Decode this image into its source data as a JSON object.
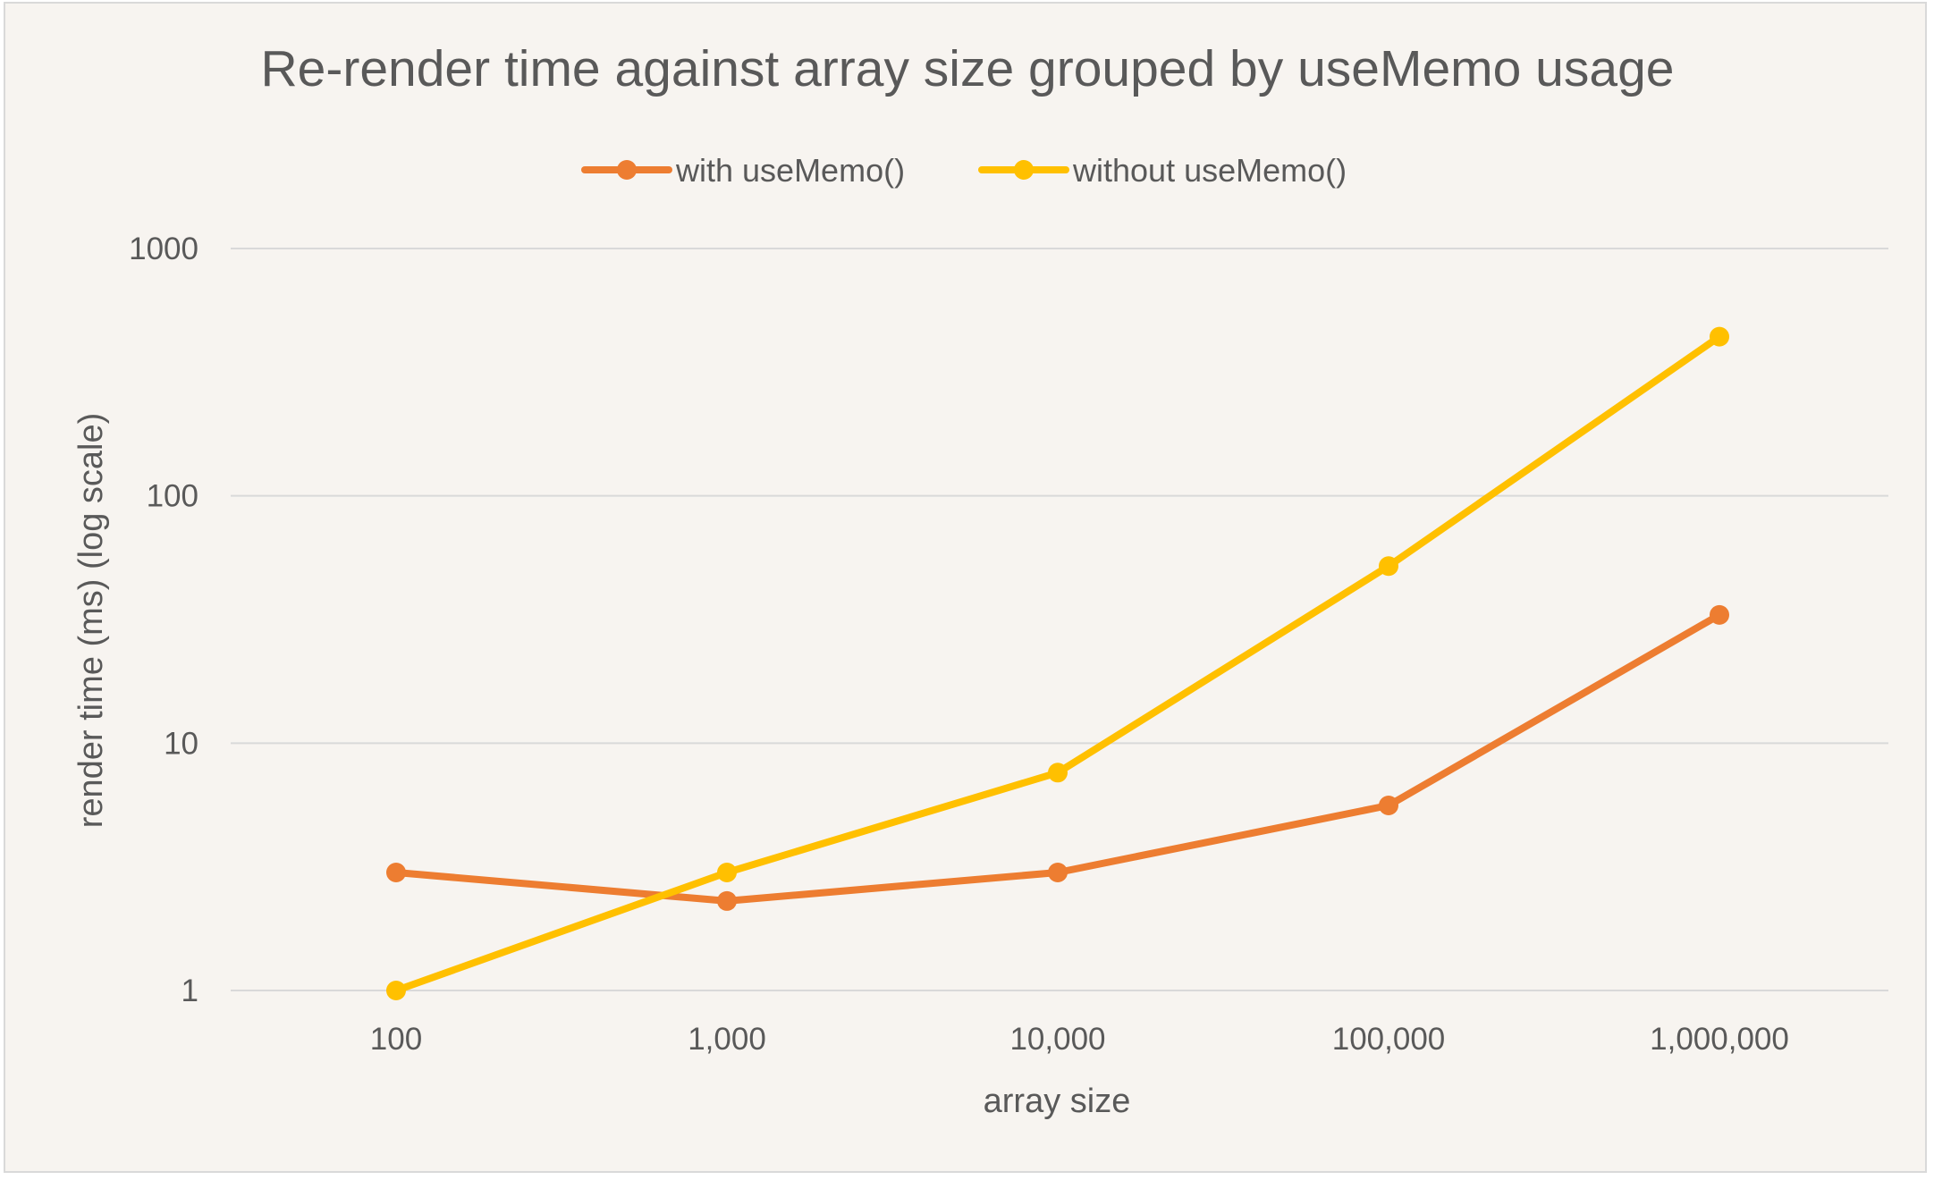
{
  "chart_data": {
    "type": "line",
    "title": "Re-render time against array size grouped by useMemo usage",
    "xlabel": "array size",
    "ylabel": "render time (ms) (log scale)",
    "y_scale": "log",
    "ylim": [
      1,
      1000
    ],
    "grid": true,
    "legend_position": "top",
    "categories": [
      "100",
      "1,000",
      "10,000",
      "100,000",
      "1,000,000"
    ],
    "y_ticks": [
      "1",
      "10",
      "100",
      "1000"
    ],
    "series": [
      {
        "name": "with useMemo()",
        "color": "#ED7D31",
        "values": [
          3.0,
          2.3,
          3.0,
          5.6,
          33.0
        ]
      },
      {
        "name": "without useMemo()",
        "color": "#FFC000",
        "values": [
          1.0,
          3.0,
          7.6,
          52.0,
          440.0
        ]
      }
    ],
    "background": "#F7F4F0",
    "gridline_color": "#D9D9D9"
  }
}
